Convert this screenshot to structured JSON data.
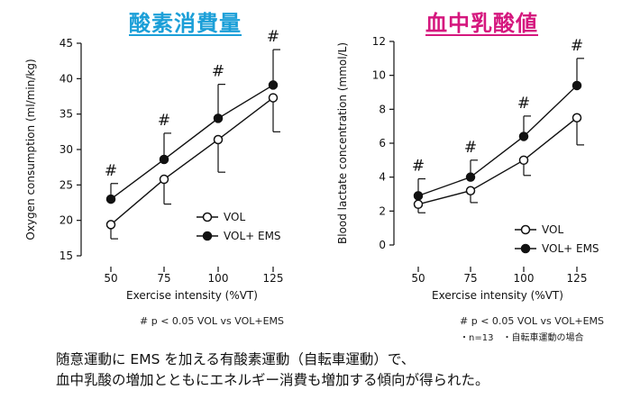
{
  "chart_data": [
    {
      "type": "line",
      "title": "酸素消費量",
      "title_color": "#1b9fd8",
      "xlabel": "Exercise intensity (%VT)",
      "ylabel": "Oxygen consumption (ml/min/kg)",
      "categories": [
        "50",
        "75",
        "100",
        "125"
      ],
      "ylim": [
        15,
        45
      ],
      "yticks": [
        "15",
        "20",
        "25",
        "30",
        "35",
        "40",
        "45"
      ],
      "series": [
        {
          "name": "VOL",
          "marker": "open-circle",
          "values": [
            19.4,
            25.8,
            31.4,
            37.3
          ],
          "errors": [
            2.0,
            3.5,
            4.6,
            4.8
          ]
        },
        {
          "name": "VOL+ EMS",
          "marker": "filled-circle",
          "values": [
            23.0,
            28.6,
            34.4,
            39.1
          ],
          "errors": [
            2.2,
            3.7,
            4.8,
            5.0
          ]
        }
      ],
      "annotations": [
        "#",
        "#",
        "#",
        "#"
      ],
      "legend": "lower-right",
      "grid": false
    },
    {
      "type": "line",
      "title": "血中乳酸値",
      "title_color": "#d5177e",
      "xlabel": "Exercise intensity (%VT)",
      "ylabel": "Blood lactate concentration (mmol/L)",
      "categories": [
        "50",
        "75",
        "100",
        "125"
      ],
      "ylim": [
        0,
        12
      ],
      "yticks": [
        "0",
        "2",
        "4",
        "6",
        "8",
        "10",
        "12"
      ],
      "series": [
        {
          "name": "VOL",
          "marker": "open-circle",
          "values": [
            2.4,
            3.2,
            5.0,
            7.5
          ],
          "errors": [
            0.5,
            0.7,
            0.9,
            1.6
          ]
        },
        {
          "name": "VOL+ EMS",
          "marker": "filled-circle",
          "values": [
            2.9,
            4.0,
            6.4,
            9.4
          ],
          "errors": [
            1.0,
            1.0,
            1.2,
            1.6
          ]
        }
      ],
      "annotations": [
        "#",
        "#",
        "#",
        "#"
      ],
      "legend": "lower-right",
      "grid": false
    }
  ],
  "notes": {
    "left": "# p < 0.05 VOL vs VOL+EMS",
    "right": "# p < 0.05 VOL vs VOL+EMS",
    "n": "・n=13　・自転車運動の場合"
  },
  "caption": {
    "line1": "随意運動に EMS を加える有酸素運動（自転車運動）で、",
    "line2": "血中乳酸の増加とともにエネルギー消費も増加する傾向が得られた。"
  }
}
